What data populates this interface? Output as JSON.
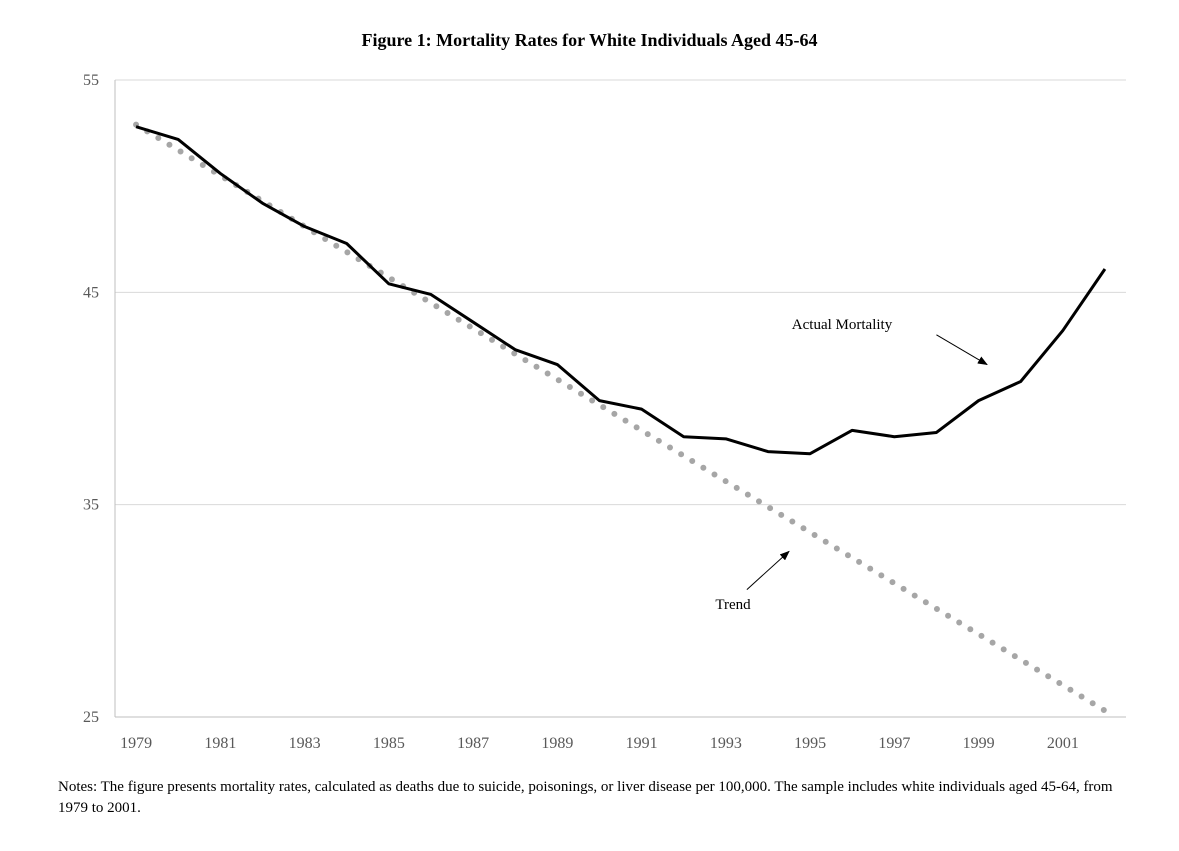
{
  "chart_data": {
    "type": "line",
    "title": "Figure 1: Mortality Rates for White Individuals Aged 45-64",
    "xlabel": "",
    "ylabel": "",
    "x": [
      1979,
      1980,
      1981,
      1982,
      1983,
      1984,
      1985,
      1986,
      1987,
      1988,
      1989,
      1990,
      1991,
      1992,
      1993,
      1994,
      1995,
      1996,
      1997,
      1998,
      1999,
      2000,
      2001,
      2002
    ],
    "xticks": [
      "1979",
      "1981",
      "1983",
      "1985",
      "1987",
      "1989",
      "1991",
      "1993",
      "1995",
      "1997",
      "1999",
      "2001"
    ],
    "yticks": [
      "55",
      "45",
      "35",
      "25"
    ],
    "ylim": [
      25,
      55
    ],
    "xlim": [
      1978.5,
      2002.5
    ],
    "grid": true,
    "series": [
      {
        "name": "Actual Mortality",
        "style": "solid",
        "color": "#000000",
        "values": [
          52.8,
          52.2,
          50.6,
          49.2,
          48.1,
          47.3,
          45.4,
          44.9,
          43.6,
          42.3,
          41.6,
          39.9,
          39.5,
          38.2,
          38.1,
          37.5,
          37.4,
          38.5,
          38.2,
          38.4,
          39.9,
          40.8,
          43.2,
          46.1
        ]
      },
      {
        "name": "Trend",
        "style": "dotted",
        "color": "#A6A6A6",
        "values": [
          52.9,
          51.7,
          50.5,
          49.3,
          48.1,
          46.9,
          45.7,
          44.5,
          43.3,
          42.1,
          40.9,
          39.7,
          38.5,
          37.3,
          36.1,
          34.9,
          33.7,
          32.5,
          31.3,
          30.1,
          28.9,
          27.7,
          26.5,
          25.3
        ]
      }
    ],
    "annotations": [
      {
        "text": "Actual Mortality",
        "arrow_from": [
          1998.0,
          43.0
        ],
        "arrow_to": [
          1999.2,
          41.6
        ]
      },
      {
        "text": "Trend",
        "arrow_from": [
          1993.5,
          31.0
        ],
        "arrow_to": [
          1994.5,
          32.8
        ]
      }
    ]
  },
  "notes": "Notes: The figure presents mortality rates, calculated as deaths due to suicide, poisonings, or liver disease per 100,000. The sample includes white individuals aged 45-64, from 1979 to 2001.",
  "colors": {
    "gridline": "#D9D9D9",
    "axis": "#BFBFBF",
    "tick_text": "#595959"
  }
}
